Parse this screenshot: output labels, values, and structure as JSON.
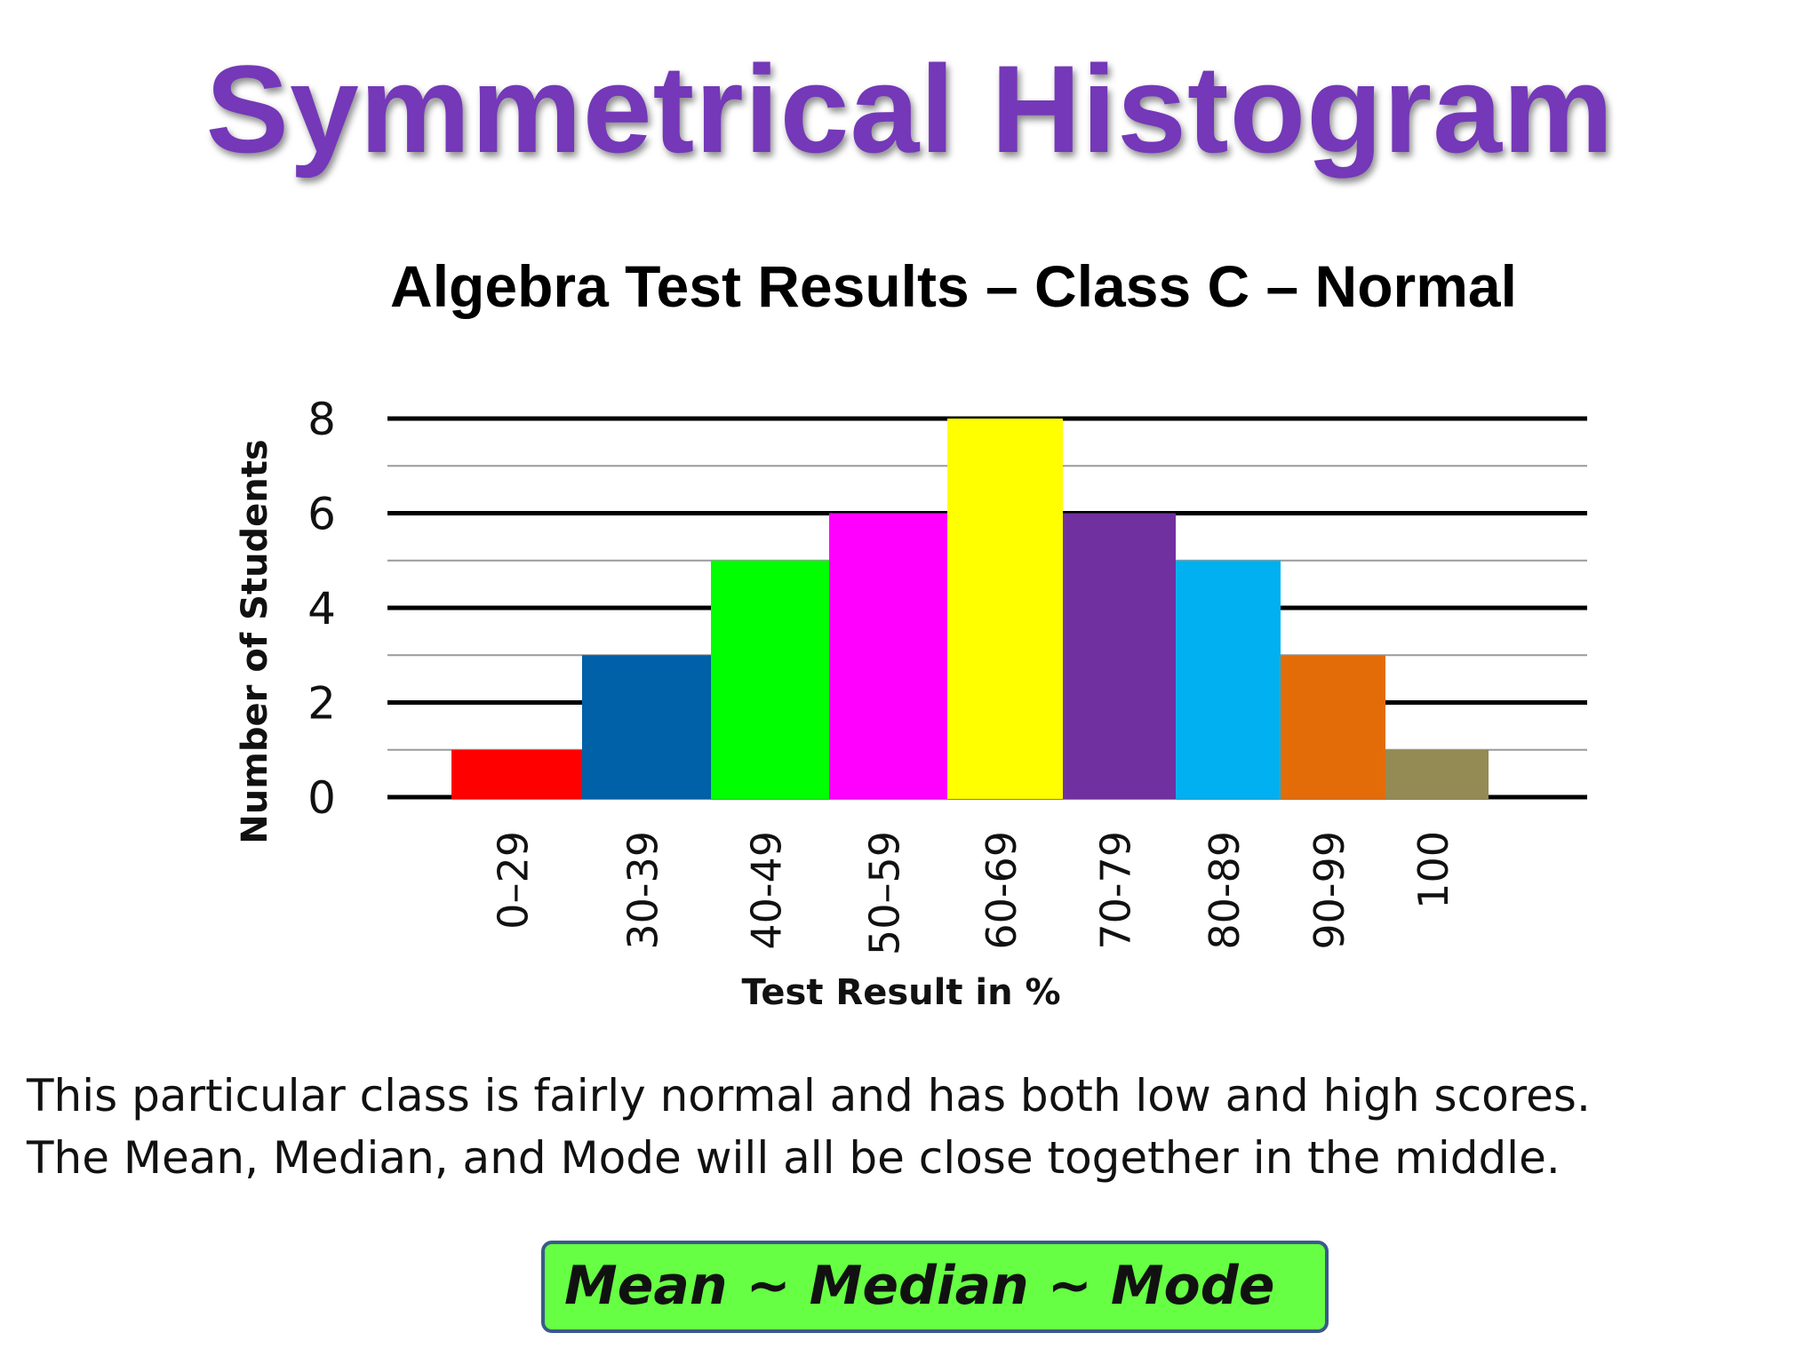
{
  "slide": {
    "title": "Symmetrical Histogram",
    "description_lines": [
      "This particular class is fairly normal and has both low and high scores.",
      "The Mean, Median, and Mode will all be close together in the middle."
    ],
    "summary": "Mean ~ Median ~ Mode"
  },
  "chart_data": {
    "type": "bar",
    "title": "Algebra Test Results – Class C – Normal",
    "xlabel": "Test Result in %",
    "ylabel": "Number of Students",
    "categories": [
      "0–29",
      "30-39",
      "40-49",
      "50–59",
      "60-69",
      "70-79",
      "80-89",
      "90-99",
      "100"
    ],
    "values": [
      1,
      3,
      5,
      6,
      8,
      6,
      5,
      3,
      1
    ],
    "colors": [
      "#ff0000",
      "#0060a8",
      "#00ff00",
      "#ff00ff",
      "#ffff00",
      "#7030a0",
      "#00b0f0",
      "#e36c09",
      "#948a54"
    ],
    "ylim": [
      0,
      8
    ],
    "yticks": [
      0,
      2,
      4,
      6,
      8
    ],
    "grid": true,
    "legend": "none"
  }
}
